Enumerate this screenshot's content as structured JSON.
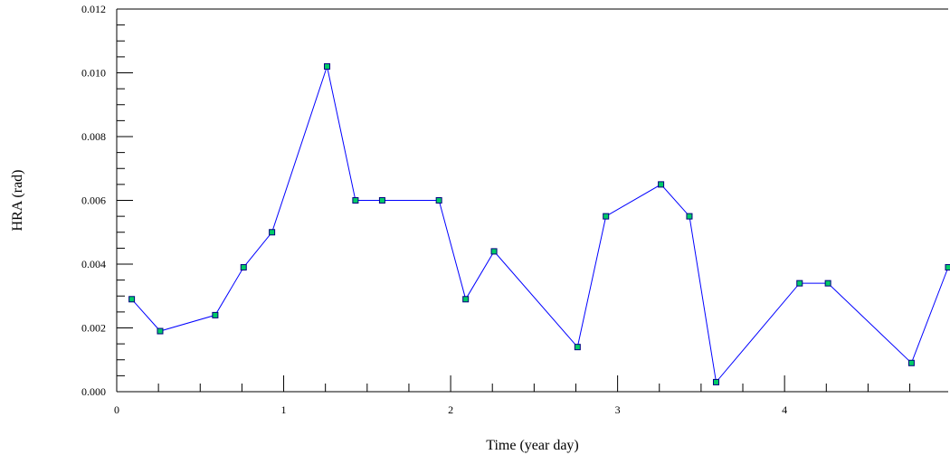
{
  "chart_data": {
    "type": "line",
    "title": "",
    "xlabel": "Time (year day)",
    "ylabel": "HRA (rad)",
    "xlim": [
      0,
      4.98
    ],
    "ylim": [
      0,
      0.012
    ],
    "x_ticks": [
      0,
      1,
      2,
      3,
      4
    ],
    "x_tick_labels": [
      "0",
      "1",
      "2",
      "3",
      "4"
    ],
    "y_ticks": [
      0,
      0.002,
      0.004,
      0.006,
      0.008,
      0.01,
      0.012
    ],
    "y_tick_labels": [
      "0.000",
      "0.002",
      "0.004",
      "0.006",
      "0.008",
      "0.010",
      "0.012"
    ],
    "grid": false,
    "colors": {
      "line": "#0000ff",
      "marker_fill": "#00cc66",
      "marker_edge": "#000080",
      "axis": "#000000"
    },
    "series": [
      {
        "x": [
          0.09,
          0.26,
          0.59,
          0.76,
          0.93,
          1.26,
          1.43,
          1.59,
          1.93,
          2.09,
          2.26,
          2.76,
          2.93,
          3.26,
          3.43,
          3.59,
          4.09,
          4.26,
          4.76,
          4.98
        ],
        "y": [
          0.0029,
          0.0019,
          0.0024,
          0.0039,
          0.005,
          0.0102,
          0.006,
          0.006,
          0.006,
          0.0029,
          0.0044,
          0.0014,
          0.0055,
          0.0065,
          0.0055,
          0.0003,
          0.0034,
          0.0034,
          0.0009,
          0.0039
        ]
      }
    ]
  }
}
